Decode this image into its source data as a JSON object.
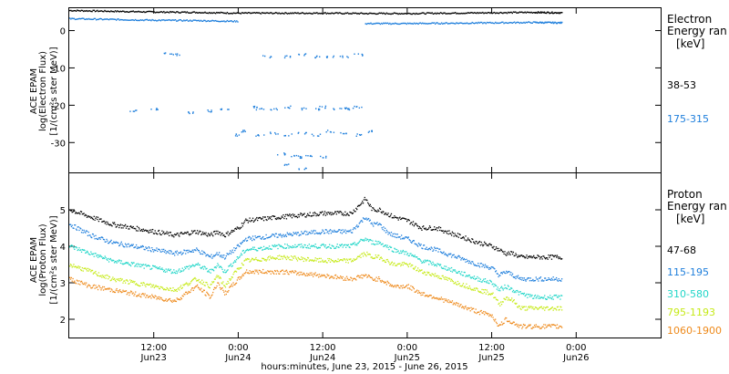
{
  "chart_data": [
    {
      "type": "scatter",
      "title": "",
      "ylabel": [
        "ACE EPAM",
        "log(Electron Flux)",
        "[1/(cm²s ster MeV)]"
      ],
      "ylim": [
        -38,
        6
      ],
      "yticks": [
        0,
        -10,
        -20,
        -30
      ],
      "xlim_hours": [
        0,
        84
      ],
      "legend": {
        "title": [
          "Electron",
          "Energy ran",
          "[keV]"
        ],
        "placement": "right",
        "entries": [
          {
            "label": "38-53",
            "color": "#000000"
          },
          {
            "label": "175-315",
            "color": "#1f7fdc"
          }
        ]
      },
      "series": [
        {
          "label": "38-53",
          "color": "#000000",
          "segments": [
            {
              "x": [
                0,
                6,
                12,
                18,
                24,
                30,
                36,
                42,
                48,
                54,
                60,
                66,
                70
              ],
              "y": [
                5.3,
                5.1,
                4.9,
                4.8,
                4.6,
                4.6,
                4.6,
                4.5,
                4.5,
                4.6,
                4.7,
                4.8,
                4.7
              ]
            }
          ]
        },
        {
          "label": "175-315",
          "color": "#1f7fdc",
          "segments": [
            {
              "x": [
                0,
                6,
                12,
                18,
                24
              ],
              "y": [
                3.1,
                2.9,
                2.7,
                2.6,
                2.4
              ]
            },
            {
              "x": [
                42,
                48,
                54,
                60,
                66,
                70
              ],
              "y": [
                1.8,
                1.8,
                1.9,
                2.0,
                2.1,
                2.0
              ]
            }
          ],
          "scatter_points": {
            "x": [
              14,
              15,
              28,
              31,
              33,
              35,
              37,
              39,
              41,
              9,
              12,
              17,
              20,
              22,
              24,
              26,
              27,
              29,
              31,
              33,
              35,
              36,
              38,
              39,
              40,
              41,
              25,
              27,
              29,
              31,
              33,
              35,
              37,
              39,
              41,
              43,
              30,
              32,
              33,
              34,
              36,
              31,
              33
            ],
            "y": [
              -6,
              -6.5,
              -7,
              -7,
              -6.5,
              -7,
              -7,
              -7,
              -6.5,
              -21.5,
              -21,
              -22,
              -21.5,
              -21,
              -28,
              -20.5,
              -21,
              -21,
              -20.5,
              -21,
              -21,
              -20.5,
              -21,
              -21,
              -21,
              -20.5,
              -27,
              -28,
              -27.5,
              -28,
              -27.5,
              -28,
              -27,
              -27.5,
              -28,
              -27,
              -33,
              -33.5,
              -34,
              -33.5,
              -34,
              -36,
              -37
            ]
          }
        }
      ]
    },
    {
      "type": "line",
      "title": "",
      "ylabel": [
        "ACE EPAM",
        "log(Proton Flux)",
        "[1/(cm²s ster MeV)]"
      ],
      "ylim": [
        1.5,
        6
      ],
      "yticks": [
        2,
        3,
        4,
        5
      ],
      "xlim_hours": [
        0,
        84
      ],
      "legend": {
        "title": [
          "Proton",
          "Energy ran",
          "[keV]"
        ],
        "placement": "right",
        "entries": [
          {
            "label": "47-68",
            "color": "#000000"
          },
          {
            "label": "115-195",
            "color": "#1f7fdc"
          },
          {
            "label": "310-580",
            "color": "#21d6c8"
          },
          {
            "label": "795-1193",
            "color": "#c6ea18"
          },
          {
            "label": "1060-1900",
            "color": "#ee8a1c"
          }
        ]
      },
      "x": [
        0,
        3,
        6,
        9,
        12,
        15,
        18,
        20,
        21,
        22,
        24,
        25,
        30,
        36,
        40,
        42,
        43,
        44,
        45,
        46,
        48,
        49,
        50,
        52,
        55,
        58,
        60,
        61,
        62,
        63,
        64,
        66,
        70
      ],
      "series": [
        {
          "label": "47-68",
          "color": "#000000",
          "values": [
            5.0,
            4.8,
            4.6,
            4.5,
            4.4,
            4.3,
            4.4,
            4.3,
            4.4,
            4.3,
            4.5,
            4.7,
            4.8,
            4.9,
            4.9,
            5.3,
            5.0,
            5.0,
            4.9,
            4.8,
            4.7,
            4.6,
            4.5,
            4.5,
            4.3,
            4.1,
            4.0,
            3.9,
            3.8,
            3.8,
            3.7,
            3.7,
            3.7
          ]
        },
        {
          "label": "115-195",
          "color": "#1f7fdc",
          "values": [
            4.6,
            4.3,
            4.1,
            4.0,
            3.9,
            3.8,
            3.9,
            3.7,
            3.8,
            3.7,
            4.0,
            4.2,
            4.3,
            4.4,
            4.4,
            4.8,
            4.6,
            4.6,
            4.4,
            4.3,
            4.2,
            4.1,
            4.0,
            3.9,
            3.7,
            3.5,
            3.4,
            3.2,
            3.3,
            3.2,
            3.1,
            3.1,
            3.1
          ]
        },
        {
          "label": "310-580",
          "color": "#21d6c8",
          "values": [
            4.0,
            3.8,
            3.6,
            3.5,
            3.4,
            3.3,
            3.5,
            3.3,
            3.5,
            3.3,
            3.7,
            3.9,
            4.0,
            4.0,
            4.0,
            4.2,
            4.1,
            4.1,
            4.0,
            3.9,
            3.8,
            3.7,
            3.6,
            3.5,
            3.3,
            3.1,
            3.0,
            2.8,
            2.9,
            2.8,
            2.7,
            2.6,
            2.6
          ]
        },
        {
          "label": "795-1193",
          "color": "#c6ea18",
          "values": [
            3.5,
            3.3,
            3.1,
            3.0,
            2.9,
            2.8,
            3.1,
            2.9,
            3.2,
            2.9,
            3.4,
            3.6,
            3.7,
            3.6,
            3.6,
            3.8,
            3.7,
            3.7,
            3.6,
            3.5,
            3.5,
            3.4,
            3.3,
            3.2,
            3.0,
            2.8,
            2.7,
            2.4,
            2.6,
            2.5,
            2.3,
            2.3,
            2.3
          ]
        },
        {
          "label": "1060-1900",
          "color": "#ee8a1c",
          "values": [
            3.1,
            2.9,
            2.8,
            2.7,
            2.6,
            2.5,
            2.9,
            2.6,
            3.0,
            2.7,
            3.1,
            3.3,
            3.3,
            3.2,
            3.1,
            3.2,
            3.1,
            3.1,
            3.0,
            2.9,
            2.9,
            2.8,
            2.7,
            2.6,
            2.4,
            2.2,
            2.1,
            1.8,
            2.0,
            1.9,
            1.8,
            1.8,
            1.8
          ]
        }
      ]
    }
  ],
  "x_axis": {
    "ticks": [
      {
        "hour": 12,
        "time": "12:00",
        "day": "Jun23"
      },
      {
        "hour": 24,
        "time": "0:00",
        "day": "Jun24"
      },
      {
        "hour": 36,
        "time": "12:00",
        "day": "Jun24"
      },
      {
        "hour": 48,
        "time": "0:00",
        "day": "Jun25"
      },
      {
        "hour": 60,
        "time": "12:00",
        "day": "Jun25"
      },
      {
        "hour": 72,
        "time": "0:00",
        "day": "Jun26"
      }
    ],
    "label": "hours:minutes, June 23, 2015 - June 26, 2015"
  }
}
